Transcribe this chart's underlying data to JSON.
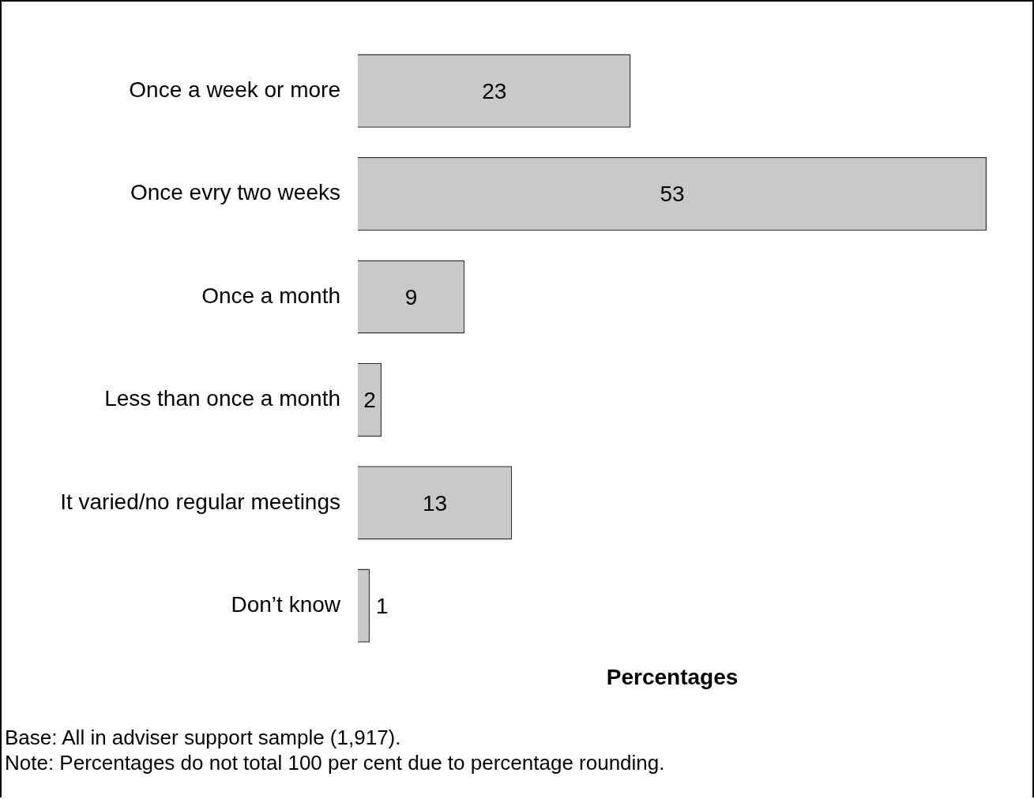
{
  "chart_data": {
    "type": "bar",
    "orientation": "horizontal",
    "categories": [
      "Once a week or more",
      "Once evry two weeks",
      "Once a month",
      "Less than once a month",
      "It varied/no regular meetings",
      "Don’t know"
    ],
    "values": [
      23,
      53,
      9,
      2,
      13,
      1
    ],
    "color": "#c8c9cb",
    "xlim": [
      0,
      53
    ],
    "xlabel": "Percentages",
    "data_labels": true,
    "tick_labels": "y",
    "grid": false,
    "legend": false,
    "annotations": [
      "Base: All in adviser support sample (1,917).",
      "Note: Percentages do not total 100 per cent due to percentage rounding."
    ]
  }
}
